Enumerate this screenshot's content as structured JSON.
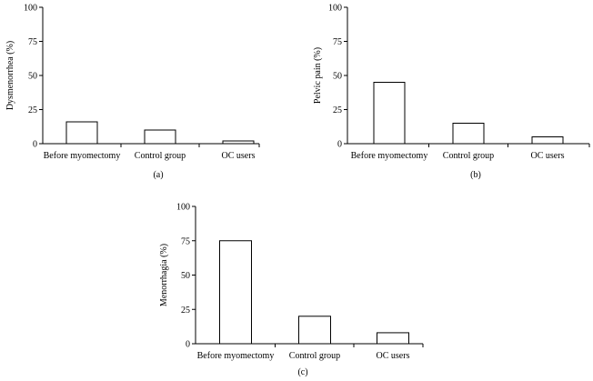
{
  "chart_data": [
    {
      "type": "bar",
      "panel_label": "(a)",
      "categories": [
        "Before myomectomy",
        "Control group",
        "OC users"
      ],
      "values": [
        16,
        10,
        2
      ],
      "xlabel": "",
      "ylabel": "Dysmenorrhea (%)",
      "ylim": [
        0,
        100
      ],
      "yticks": [
        0,
        25,
        50,
        75,
        100
      ],
      "grid": false,
      "bar_fill": "#ffffff",
      "bar_stroke": "#000000"
    },
    {
      "type": "bar",
      "panel_label": "(b)",
      "categories": [
        "Before myomectomy",
        "Control group",
        "OC users"
      ],
      "values": [
        45,
        15,
        5
      ],
      "xlabel": "",
      "ylabel": "Pelvic pain (%)",
      "ylim": [
        0,
        100
      ],
      "yticks": [
        0,
        25,
        50,
        75,
        100
      ],
      "grid": false,
      "bar_fill": "#ffffff",
      "bar_stroke": "#000000"
    },
    {
      "type": "bar",
      "panel_label": "(c)",
      "categories": [
        "Before myomectomy",
        "Control group",
        "OC users"
      ],
      "values": [
        75,
        20,
        8
      ],
      "xlabel": "",
      "ylabel": "Menorrhagia (%)",
      "ylim": [
        0,
        100
      ],
      "yticks": [
        0,
        25,
        50,
        75,
        100
      ],
      "grid": false,
      "bar_fill": "#ffffff",
      "bar_stroke": "#000000"
    }
  ]
}
